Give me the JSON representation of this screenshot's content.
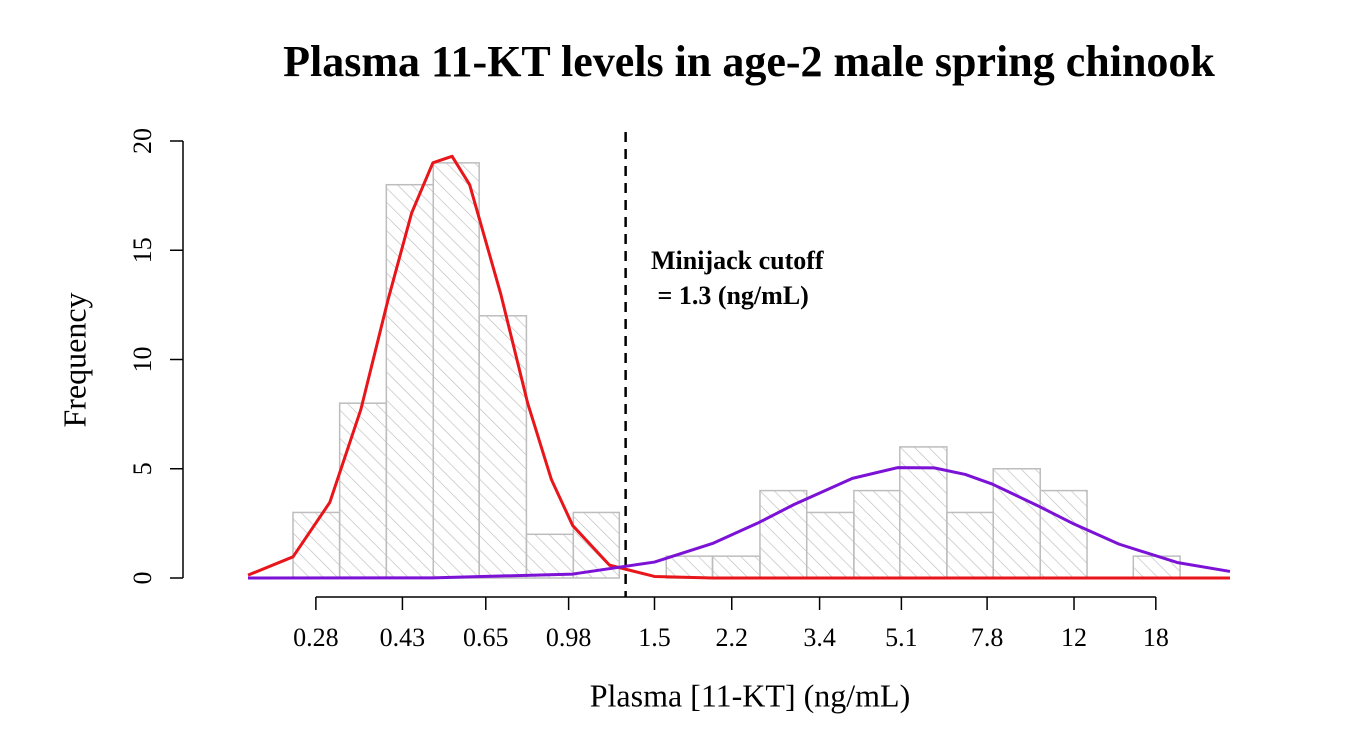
{
  "chart_data": {
    "type": "histogram",
    "title": "Plasma 11-KT levels in age-2 male spring chinook",
    "x_label": "Plasma [11-KT] (ng/mL)",
    "y_label": "Frequency",
    "xscale": "log",
    "xlim": [
      0.2,
      26
    ],
    "xticks": [
      0.28,
      0.43,
      0.65,
      0.98,
      1.5,
      2.2,
      3.4,
      5.1,
      7.8,
      12,
      18
    ],
    "ylim": [
      0,
      20
    ],
    "yticks": [
      0,
      5,
      10,
      15,
      20
    ],
    "bins": [
      0.25,
      0.315,
      0.397,
      0.501,
      0.629,
      0.795,
      1.003,
      1.26,
      1.59,
      2.0,
      2.53,
      3.19,
      4.03,
      5.06,
      6.39,
      8.04,
      10.15,
      12.8,
      16.1,
      20.3
    ],
    "values": [
      3,
      8,
      18,
      19,
      12,
      2,
      3,
      0,
      1,
      1,
      4,
      3,
      4,
      6,
      3,
      5,
      4,
      0,
      1
    ],
    "color": "#bdbdbd",
    "series": [
      {
        "color": "#e8161b",
        "x": [
          0.2,
          0.25,
          0.3,
          0.35,
          0.4,
          0.45,
          0.5,
          0.55,
          0.6,
          0.7,
          0.8,
          0.9,
          1.0,
          1.2,
          1.5,
          2,
          3,
          26
        ],
        "values": [
          0.13,
          0.97,
          3.46,
          7.72,
          12.7,
          16.7,
          19.0,
          19.3,
          18.0,
          13.0,
          8.0,
          4.5,
          2.4,
          0.59,
          0.07,
          0,
          0,
          0
        ]
      },
      {
        "color": "#7b12d6",
        "x": [
          0.2,
          0.5,
          1,
          1.5,
          2,
          2.5,
          3,
          4,
          5,
          6,
          7,
          8,
          10,
          12,
          15,
          20,
          26
        ],
        "values": [
          0,
          0.007,
          0.18,
          0.73,
          1.58,
          2.51,
          3.37,
          4.56,
          5.05,
          5.04,
          4.74,
          4.3,
          3.32,
          2.47,
          1.55,
          0.71,
          0.3
        ]
      }
    ],
    "cutoff": 1.3,
    "annotation": [
      "Minijack cutoff",
      " = 1.3 (ng/mL)"
    ]
  }
}
